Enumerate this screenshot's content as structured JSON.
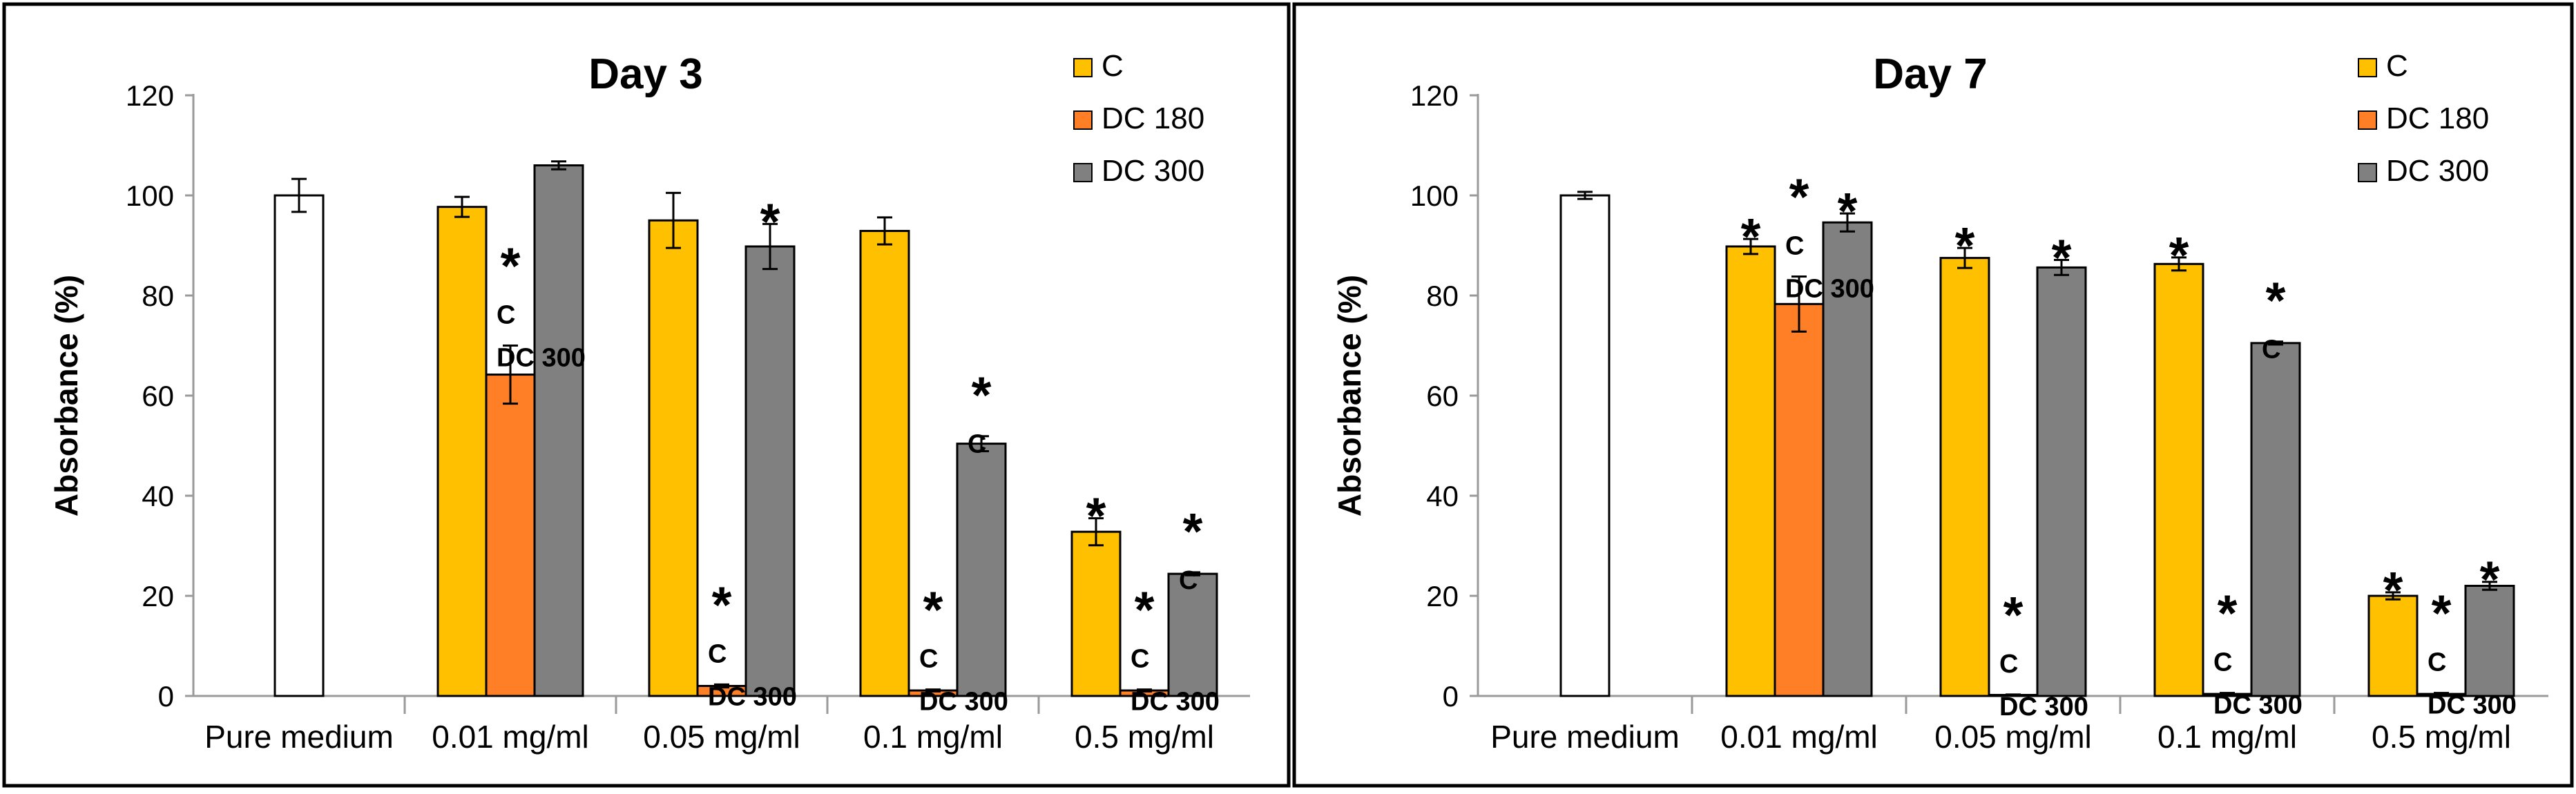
{
  "chart_data": [
    {
      "type": "bar",
      "title": "Day 3",
      "xlabel": "",
      "ylabel": "Absorbance (%)",
      "ylim": [
        0,
        120
      ],
      "yticks": [
        0,
        20,
        40,
        60,
        80,
        100,
        120
      ],
      "grid": false,
      "legend_position": "top-right",
      "categories": [
        "Pure medium",
        "0.01 mg/ml",
        "0.05 mg/ml",
        "0.1 mg/ml",
        "0.5 mg/ml"
      ],
      "control": {
        "category": "Pure medium",
        "value": 100,
        "error": 3.3,
        "color": "#ffffff"
      },
      "series": [
        {
          "name": "C",
          "color": "#ffc000",
          "values": [
            null,
            97.7,
            95.0,
            92.9,
            32.8
          ],
          "errors": [
            null,
            2.0,
            5.5,
            2.7,
            2.7
          ]
        },
        {
          "name": "DC 180",
          "color": "#ff7f27",
          "values": [
            null,
            64.2,
            2.0,
            1.1,
            1.1
          ],
          "errors": [
            null,
            5.8,
            0.3,
            0.2,
            0.2
          ]
        },
        {
          "name": "DC 300",
          "color": "#808080",
          "values": [
            null,
            106.0,
            89.8,
            50.4,
            24.4
          ],
          "errors": [
            null,
            0.8,
            4.5,
            1.5,
            0.3
          ]
        }
      ],
      "annotations": [
        {
          "category": "0.01 mg/ml",
          "series": "DC 180",
          "lines": [
            "*",
            "C",
            "DC 300"
          ]
        },
        {
          "category": "0.05 mg/ml",
          "series": "DC 180",
          "lines": [
            "*",
            "C",
            "DC 300"
          ]
        },
        {
          "category": "0.05 mg/ml",
          "series": "DC 300",
          "lines": [
            "*"
          ]
        },
        {
          "category": "0.1 mg/ml",
          "series": "DC 180",
          "lines": [
            "*",
            "C",
            "DC 300"
          ]
        },
        {
          "category": "0.1 mg/ml",
          "series": "DC 300",
          "lines": [
            "*",
            "C"
          ]
        },
        {
          "category": "0.5 mg/ml",
          "series": "C",
          "lines": [
            "*"
          ]
        },
        {
          "category": "0.5 mg/ml",
          "series": "DC 180",
          "lines": [
            "*",
            "C",
            "DC 300"
          ]
        },
        {
          "category": "0.5 mg/ml",
          "series": "DC 300",
          "lines": [
            "*",
            "C"
          ]
        }
      ]
    },
    {
      "type": "bar",
      "title": "Day 7",
      "xlabel": "",
      "ylabel": "Absorbance (%)",
      "ylim": [
        0,
        120
      ],
      "yticks": [
        0,
        20,
        40,
        60,
        80,
        100,
        120
      ],
      "grid": false,
      "legend_position": "top-right",
      "categories": [
        "Pure medium",
        "0.01 mg/ml",
        "0.05 mg/ml",
        "0.1 mg/ml",
        "0.5 mg/ml"
      ],
      "control": {
        "category": "Pure medium",
        "value": 100,
        "error": 0.7,
        "color": "#ffffff"
      },
      "series": [
        {
          "name": "C",
          "color": "#ffc000",
          "values": [
            null,
            89.8,
            87.5,
            86.3,
            20.0
          ],
          "errors": [
            null,
            1.5,
            2.0,
            1.3,
            0.7
          ]
        },
        {
          "name": "DC 180",
          "color": "#ff7f27",
          "values": [
            null,
            78.3,
            0.2,
            0.4,
            0.4
          ],
          "errors": [
            null,
            5.5,
            0.1,
            0.2,
            0.2
          ]
        },
        {
          "name": "DC 300",
          "color": "#808080",
          "values": [
            null,
            94.6,
            85.6,
            70.5,
            22.0
          ],
          "errors": [
            null,
            1.8,
            1.5,
            0.3,
            0.8
          ]
        }
      ],
      "annotations": [
        {
          "category": "0.01 mg/ml",
          "series": "C",
          "lines": [
            "*"
          ]
        },
        {
          "category": "0.01 mg/ml",
          "series": "DC 180",
          "lines": [
            "*",
            "C",
            "DC 300"
          ]
        },
        {
          "category": "0.01 mg/ml",
          "series": "DC 300",
          "lines": [
            "*"
          ]
        },
        {
          "category": "0.05 mg/ml",
          "series": "C",
          "lines": [
            "*"
          ]
        },
        {
          "category": "0.05 mg/ml",
          "series": "DC 180",
          "lines": [
            "*",
            "C",
            "DC 300"
          ]
        },
        {
          "category": "0.05 mg/ml",
          "series": "DC 300",
          "lines": [
            "*"
          ]
        },
        {
          "category": "0.1 mg/ml",
          "series": "C",
          "lines": [
            "*"
          ]
        },
        {
          "category": "0.1 mg/ml",
          "series": "DC 180",
          "lines": [
            "*",
            "C",
            "DC 300"
          ]
        },
        {
          "category": "0.1 mg/ml",
          "series": "DC 300",
          "lines": [
            "*",
            "C"
          ]
        },
        {
          "category": "0.5 mg/ml",
          "series": "C",
          "lines": [
            "*"
          ]
        },
        {
          "category": "0.5 mg/ml",
          "series": "DC 180",
          "lines": [
            "*",
            "C",
            "DC 300"
          ]
        },
        {
          "category": "0.5 mg/ml",
          "series": "DC 300",
          "lines": [
            "*"
          ]
        }
      ]
    }
  ]
}
